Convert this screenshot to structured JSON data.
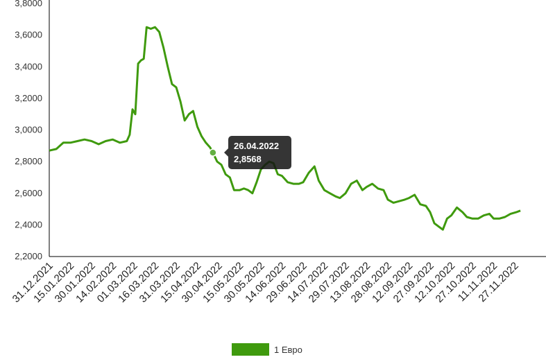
{
  "chart_data": {
    "type": "line",
    "ylim": [
      2.2,
      3.8
    ],
    "yticks": [
      "2,2000",
      "2,4000",
      "2,6000",
      "2,8000",
      "3,0000",
      "3,2000",
      "3,4000",
      "3,6000",
      "3,8000"
    ],
    "ytick_values": [
      2.2,
      2.4,
      2.6,
      2.8,
      3.0,
      3.2,
      3.4,
      3.6,
      3.8
    ],
    "xticks": [
      "31.12.2021",
      "15.01.2022",
      "30.01.2022",
      "14.02.2022",
      "01.03.2022",
      "16.03.2022",
      "31.03.2022",
      "15.04.2022",
      "30.04.2022",
      "15.05.2022",
      "30.05.2022",
      "14.06.2022",
      "29.06.2022",
      "14.07.2022",
      "29.07.2022",
      "13.08.2022",
      "28.08.2022",
      "12.09.2022",
      "27.09.2022",
      "12.10.2022",
      "27.10.2022",
      "11.11.2022",
      "27.11.2022"
    ],
    "grid": false,
    "legend": "bottom",
    "series": [
      {
        "name": "1 Евро",
        "color": "#3f9a0e",
        "x": [
          "31.12.2021",
          "05.01.2022",
          "10.01.2022",
          "15.01.2022",
          "20.01.2022",
          "25.01.2022",
          "30.01.2022",
          "04.02.2022",
          "09.02.2022",
          "14.02.2022",
          "19.02.2022",
          "24.02.2022",
          "26.02.2022",
          "28.02.2022",
          "02.03.2022",
          "04.03.2022",
          "06.03.2022",
          "08.03.2022",
          "10.03.2022",
          "13.03.2022",
          "16.03.2022",
          "19.03.2022",
          "22.03.2022",
          "25.03.2022",
          "28.03.2022",
          "31.03.2022",
          "03.04.2022",
          "06.04.2022",
          "09.04.2022",
          "12.04.2022",
          "15.04.2022",
          "18.04.2022",
          "21.04.2022",
          "24.04.2022",
          "26.04.2022",
          "29.04.2022",
          "02.05.2022",
          "05.05.2022",
          "08.05.2022",
          "11.05.2022",
          "15.05.2022",
          "18.05.2022",
          "21.05.2022",
          "24.05.2022",
          "27.05.2022",
          "30.05.2022",
          "02.06.2022",
          "05.06.2022",
          "08.06.2022",
          "11.06.2022",
          "14.06.2022",
          "18.06.2022",
          "22.06.2022",
          "26.06.2022",
          "29.06.2022",
          "03.07.2022",
          "07.07.2022",
          "10.07.2022",
          "14.07.2022",
          "18.07.2022",
          "22.07.2022",
          "25.07.2022",
          "29.07.2022",
          "02.08.2022",
          "06.08.2022",
          "10.08.2022",
          "13.08.2022",
          "17.08.2022",
          "21.08.2022",
          "25.08.2022",
          "28.08.2022",
          "01.09.2022",
          "05.09.2022",
          "09.09.2022",
          "12.09.2022",
          "16.09.2022",
          "20.09.2022",
          "24.09.2022",
          "27.09.2022",
          "30.09.2022",
          "03.10.2022",
          "06.10.2022",
          "09.10.2022",
          "12.10.2022",
          "16.10.2022",
          "20.10.2022",
          "23.10.2022",
          "27.10.2022",
          "31.10.2022",
          "04.11.2022",
          "08.11.2022",
          "11.11.2022",
          "15.11.2022",
          "19.11.2022",
          "23.11.2022",
          "27.11.2022",
          "30.11.2022"
        ],
        "values": [
          2.87,
          2.88,
          2.92,
          2.92,
          2.93,
          2.94,
          2.93,
          2.91,
          2.93,
          2.94,
          2.92,
          2.93,
          2.97,
          3.13,
          3.1,
          3.42,
          3.44,
          3.45,
          3.65,
          3.64,
          3.65,
          3.62,
          3.52,
          3.4,
          3.29,
          3.27,
          3.18,
          3.06,
          3.1,
          3.12,
          3.02,
          2.96,
          2.92,
          2.89,
          2.8568,
          2.8,
          2.78,
          2.72,
          2.7,
          2.62,
          2.62,
          2.63,
          2.62,
          2.6,
          2.67,
          2.75,
          2.78,
          2.8,
          2.79,
          2.72,
          2.71,
          2.67,
          2.66,
          2.66,
          2.67,
          2.73,
          2.77,
          2.68,
          2.62,
          2.6,
          2.58,
          2.57,
          2.6,
          2.66,
          2.68,
          2.62,
          2.64,
          2.66,
          2.63,
          2.62,
          2.56,
          2.54,
          2.55,
          2.56,
          2.57,
          2.59,
          2.53,
          2.52,
          2.48,
          2.41,
          2.39,
          2.37,
          2.44,
          2.46,
          2.51,
          2.48,
          2.45,
          2.44,
          2.44,
          2.46,
          2.47,
          2.44,
          2.44,
          2.45,
          2.47,
          2.48,
          2.49
        ]
      }
    ]
  },
  "tooltip": {
    "date": "26.04.2022",
    "value": "2,8568"
  },
  "legend_label": "1 Евро",
  "legend_color": "#3f9a0e"
}
